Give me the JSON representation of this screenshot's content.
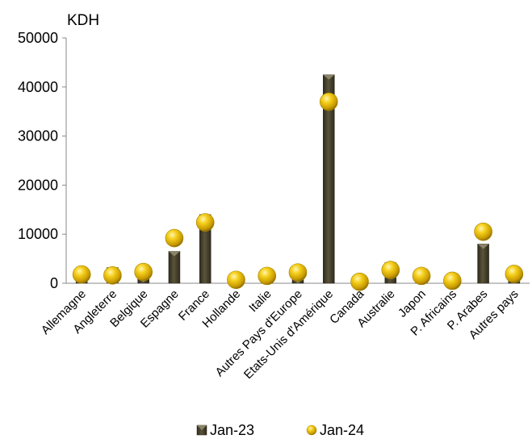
{
  "chart_data": {
    "type": "bar",
    "unit_label": "KDH",
    "categories": [
      "Allemagne",
      "Angleterre",
      "Belgique",
      "Espagne",
      "France",
      "Hollande",
      "Italie",
      "Autres Pays d'Europe",
      "Etats-Unis d'Amérique",
      "Canada",
      "Australie",
      "Japon",
      "P. Africains",
      "P. Arabes",
      "Autres pays"
    ],
    "series": [
      {
        "name": "Jan-23",
        "style": "bar",
        "color": "#4a4531",
        "values": [
          1500,
          3200,
          1200,
          6500,
          14000,
          1500,
          1200,
          1000,
          42500,
          300,
          4200,
          1500,
          600,
          8000,
          1800
        ]
      },
      {
        "name": "Jan-24",
        "style": "marker",
        "color": "#f2c200",
        "values": [
          1800,
          1600,
          2300,
          9200,
          12400,
          700,
          1500,
          2200,
          37000,
          300,
          2700,
          1500,
          500,
          10500,
          1900
        ]
      }
    ],
    "ylim": [
      0,
      50000
    ],
    "yticks": [
      0,
      10000,
      20000,
      30000,
      40000,
      50000
    ],
    "grid": false,
    "legend": "bottom"
  }
}
